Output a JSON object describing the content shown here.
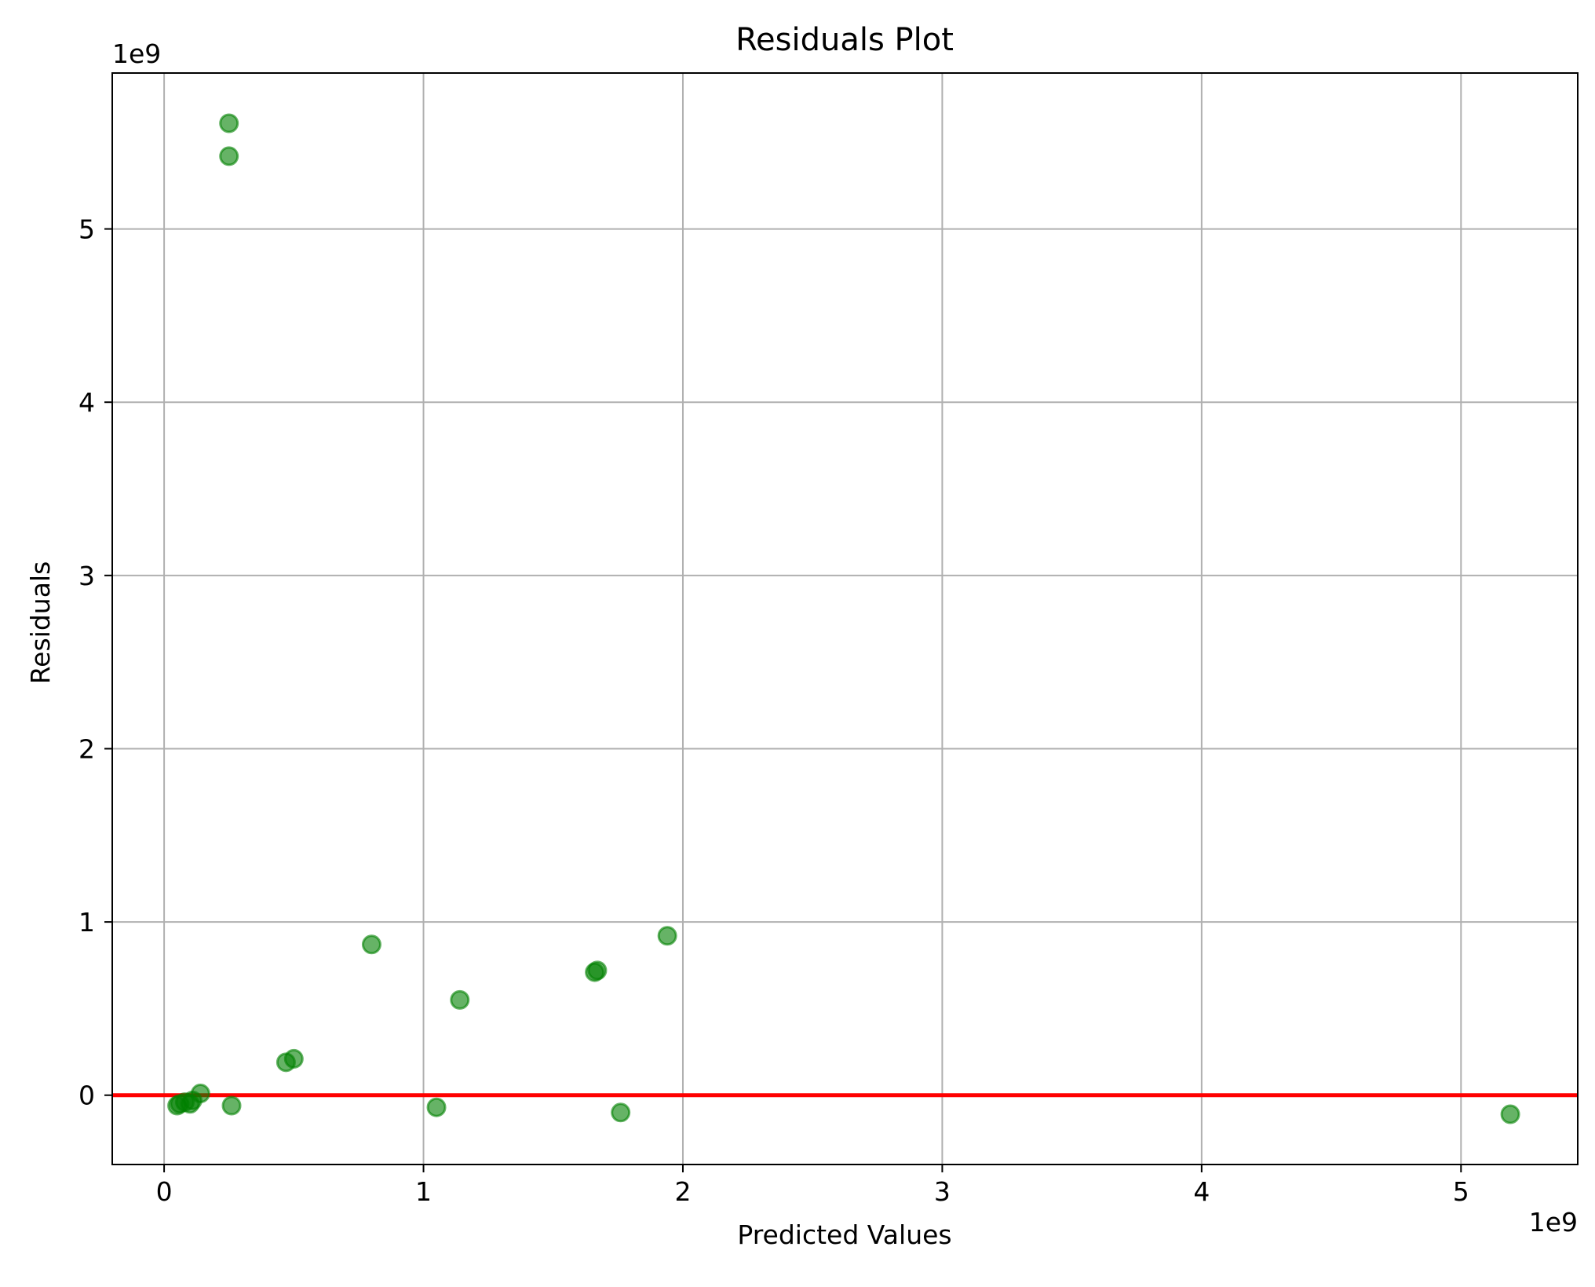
{
  "chart_data": {
    "type": "scatter",
    "title": "Residuals Plot",
    "xlabel": "Predicted Values",
    "ylabel": "Residuals",
    "x_offset_label": "1e9",
    "y_offset_label": "1e9",
    "xlim": [
      -0.2,
      5.45
    ],
    "ylim": [
      -0.4,
      5.9
    ],
    "xticks": [
      0,
      1,
      2,
      3,
      4,
      5
    ],
    "yticks": [
      0,
      1,
      2,
      3,
      4,
      5
    ],
    "grid": true,
    "point_color": "#008000",
    "reference_line": {
      "y": 0,
      "color": "#ff0000"
    },
    "series": [
      {
        "points": [
          {
            "x": 0.25,
            "y": 5.61
          },
          {
            "x": 0.25,
            "y": 5.42
          },
          {
            "x": 0.05,
            "y": -0.06
          },
          {
            "x": 0.06,
            "y": -0.05
          },
          {
            "x": 0.08,
            "y": -0.04
          },
          {
            "x": 0.1,
            "y": -0.05
          },
          {
            "x": 0.11,
            "y": -0.03
          },
          {
            "x": 0.14,
            "y": 0.01
          },
          {
            "x": 0.26,
            "y": -0.06
          },
          {
            "x": 0.47,
            "y": 0.19
          },
          {
            "x": 0.5,
            "y": 0.21
          },
          {
            "x": 0.8,
            "y": 0.87
          },
          {
            "x": 1.05,
            "y": -0.07
          },
          {
            "x": 1.14,
            "y": 0.55
          },
          {
            "x": 1.66,
            "y": 0.71
          },
          {
            "x": 1.67,
            "y": 0.72
          },
          {
            "x": 1.76,
            "y": -0.1
          },
          {
            "x": 1.94,
            "y": 0.92
          },
          {
            "x": 5.19,
            "y": -0.11
          }
        ]
      }
    ]
  }
}
